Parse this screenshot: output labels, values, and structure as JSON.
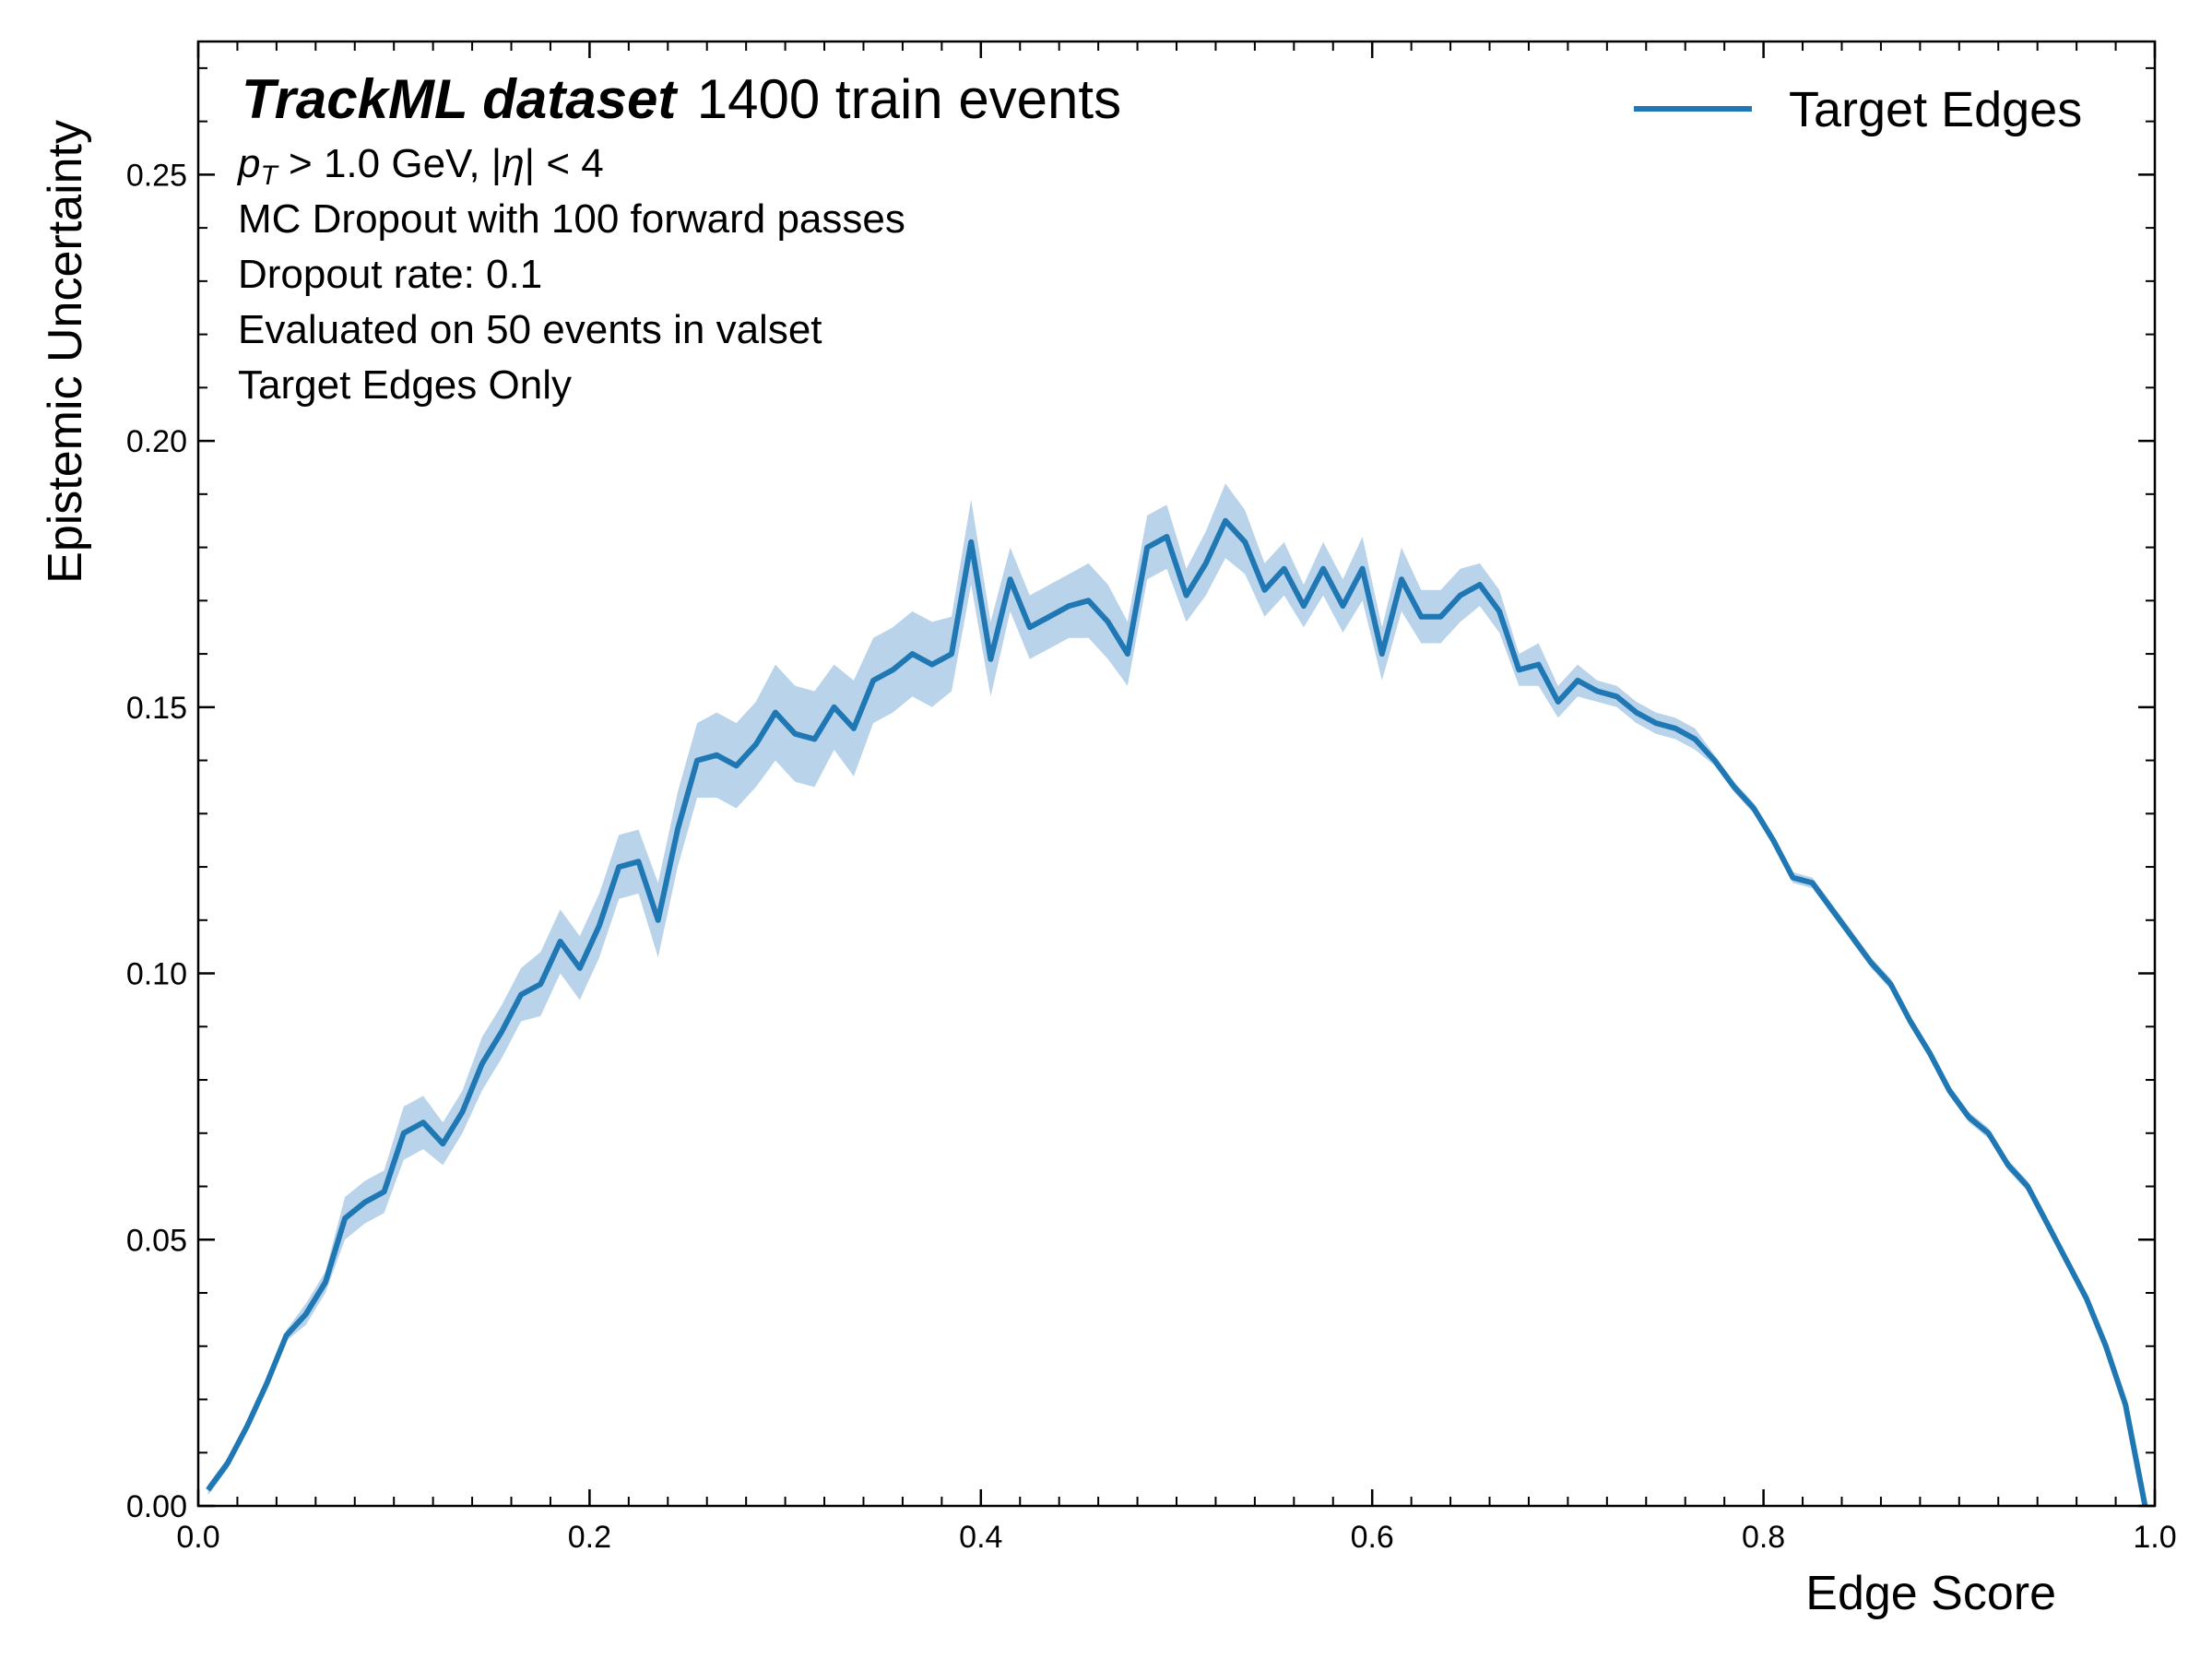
{
  "chart_data": {
    "type": "line",
    "title_bold": "TrackML dataset",
    "title_rest": "1400 train events",
    "annotations": [
      "p_T > 1.0 GeV, |η| < 4",
      "MC Dropout with 100 forward passes",
      "Dropout rate: 0.1",
      "Evaluated on 50 events in valset",
      "Target Edges Only"
    ],
    "annotation_pt": {
      "p": "p",
      "sub": "T",
      "rest": " > 1.0 GeV, |",
      "eta": "η",
      "end": "| < 4"
    },
    "xlabel": "Edge Score",
    "ylabel": "Epistemic Uncertainty",
    "xlim": [
      0.0,
      1.0
    ],
    "ylim": [
      0.0,
      0.275
    ],
    "xticks": [
      0.0,
      0.2,
      0.4,
      0.6,
      0.8,
      1.0
    ],
    "xtick_labels": [
      "0.0",
      "0.2",
      "0.4",
      "0.6",
      "0.8",
      "1.0"
    ],
    "yticks": [
      0.0,
      0.05,
      0.1,
      0.15,
      0.2,
      0.25
    ],
    "ytick_labels": [
      "0.00",
      "0.05",
      "0.10",
      "0.15",
      "0.20",
      "0.25"
    ],
    "legend": {
      "position": "upper-right",
      "entries": [
        "Target Edges"
      ]
    },
    "grid": false,
    "colors": {
      "line": "#1f77b4",
      "band": "#b9d3ea"
    },
    "series": [
      {
        "name": "Target Edges",
        "x": [
          0.005,
          0.015,
          0.025,
          0.035,
          0.045,
          0.055,
          0.065,
          0.075,
          0.085,
          0.095,
          0.105,
          0.115,
          0.125,
          0.135,
          0.145,
          0.155,
          0.165,
          0.175,
          0.185,
          0.195,
          0.205,
          0.215,
          0.225,
          0.235,
          0.245,
          0.255,
          0.265,
          0.275,
          0.285,
          0.295,
          0.305,
          0.315,
          0.325,
          0.335,
          0.345,
          0.355,
          0.365,
          0.375,
          0.385,
          0.395,
          0.405,
          0.415,
          0.425,
          0.435,
          0.445,
          0.455,
          0.465,
          0.475,
          0.485,
          0.495,
          0.505,
          0.515,
          0.525,
          0.535,
          0.545,
          0.555,
          0.565,
          0.575,
          0.585,
          0.595,
          0.605,
          0.615,
          0.625,
          0.635,
          0.645,
          0.655,
          0.665,
          0.675,
          0.685,
          0.695,
          0.705,
          0.715,
          0.725,
          0.735,
          0.745,
          0.755,
          0.765,
          0.775,
          0.785,
          0.795,
          0.805,
          0.815,
          0.825,
          0.835,
          0.845,
          0.855,
          0.865,
          0.875,
          0.885,
          0.895,
          0.905,
          0.915,
          0.925,
          0.935,
          0.945,
          0.955,
          0.965,
          0.975,
          0.985,
          0.995
        ],
        "y": [
          0.003,
          0.008,
          0.015,
          0.023,
          0.032,
          0.036,
          0.042,
          0.054,
          0.057,
          0.059,
          0.07,
          0.072,
          0.068,
          0.074,
          0.083,
          0.089,
          0.096,
          0.098,
          0.106,
          0.101,
          0.109,
          0.12,
          0.121,
          0.11,
          0.127,
          0.14,
          0.141,
          0.139,
          0.143,
          0.149,
          0.145,
          0.144,
          0.15,
          0.146,
          0.155,
          0.157,
          0.16,
          0.158,
          0.16,
          0.181,
          0.159,
          0.174,
          0.165,
          0.167,
          0.169,
          0.17,
          0.166,
          0.16,
          0.18,
          0.182,
          0.171,
          0.177,
          0.185,
          0.181,
          0.172,
          0.176,
          0.169,
          0.176,
          0.169,
          0.176,
          0.16,
          0.174,
          0.167,
          0.167,
          0.171,
          0.173,
          0.168,
          0.157,
          0.158,
          0.151,
          0.155,
          0.153,
          0.152,
          0.149,
          0.147,
          0.146,
          0.144,
          0.14,
          0.135,
          0.131,
          0.125,
          0.118,
          0.117,
          0.112,
          0.107,
          0.102,
          0.098,
          0.091,
          0.085,
          0.078,
          0.073,
          0.07,
          0.064,
          0.06,
          0.053,
          0.046,
          0.039,
          0.03,
          0.019,
          0.0
        ],
        "band": [
          0.001,
          0.001,
          0.001,
          0.001,
          0.001,
          0.002,
          0.002,
          0.004,
          0.004,
          0.004,
          0.005,
          0.005,
          0.004,
          0.004,
          0.005,
          0.005,
          0.005,
          0.006,
          0.006,
          0.006,
          0.006,
          0.006,
          0.006,
          0.007,
          0.007,
          0.007,
          0.008,
          0.008,
          0.008,
          0.009,
          0.009,
          0.009,
          0.008,
          0.009,
          0.008,
          0.008,
          0.008,
          0.008,
          0.007,
          0.008,
          0.007,
          0.006,
          0.006,
          0.006,
          0.006,
          0.007,
          0.007,
          0.006,
          0.006,
          0.006,
          0.005,
          0.006,
          0.007,
          0.006,
          0.005,
          0.005,
          0.004,
          0.005,
          0.005,
          0.006,
          0.005,
          0.006,
          0.005,
          0.005,
          0.005,
          0.004,
          0.004,
          0.003,
          0.004,
          0.003,
          0.003,
          0.002,
          0.002,
          0.002,
          0.002,
          0.002,
          0.002,
          0.001,
          0.001,
          0.001,
          0.001,
          0.001,
          0.001,
          0.001,
          0.001,
          0.001,
          0.001,
          0.001,
          0.001,
          0.001,
          0.001,
          0.001,
          0.001,
          0.001,
          0.001,
          0.001,
          0.001,
          0.001,
          0.001,
          0.001
        ]
      }
    ]
  }
}
